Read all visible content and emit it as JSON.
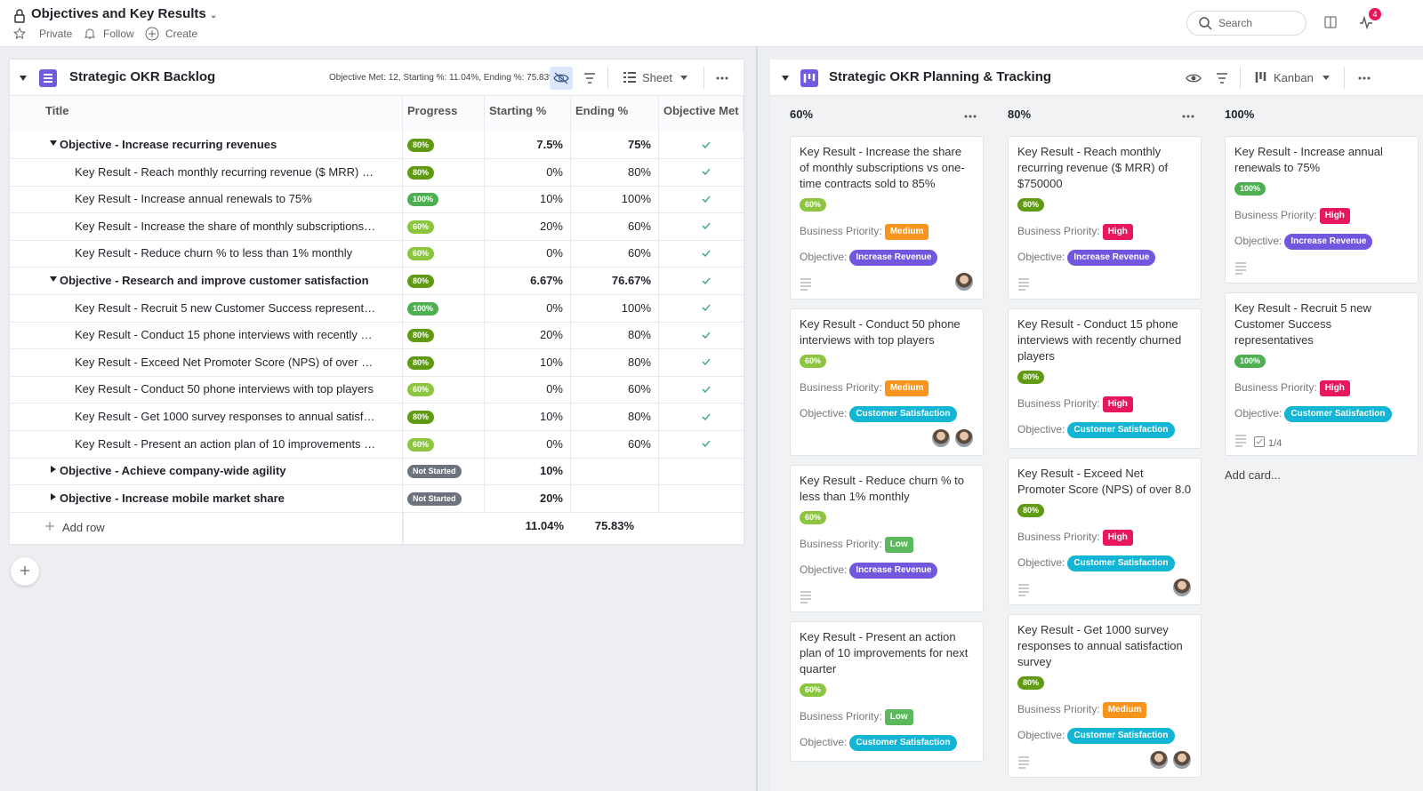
{
  "header": {
    "title": "Objectives and Key Results",
    "private": "Private",
    "follow": "Follow",
    "create": "Create",
    "search": "Search",
    "notifications": "4"
  },
  "colors": {
    "progress": {
      "60%": "#8cc63f",
      "80%": "#5f9a12",
      "100%": "#4cb050",
      "Not Started": "#6c737d"
    },
    "priority": {
      "Medium": "#f7941d",
      "High": "#e8175d",
      "Low": "#5cb85c"
    },
    "objective": {
      "Increase Revenue": "#7356e0",
      "Customer Satisfaction": "#12b5d4"
    }
  },
  "sheet": {
    "title": "Strategic OKR Backlog",
    "summary": "Objective Met: 12, Starting %: 11.04%, Ending %: 75.83%",
    "view": "Sheet",
    "columns": [
      "Title",
      "Progress",
      "Starting %",
      "Ending %",
      "Objective Met"
    ],
    "objectives": [
      {
        "title": "Objective - Increase recurring revenues",
        "progress": "80%",
        "start": "7.5%",
        "end": "75%",
        "met": true,
        "expanded": true,
        "key_results": [
          {
            "title": "Key Result - Reach monthly recurring revenue ($ MRR) of $750000",
            "progress": "80%",
            "start": "0%",
            "end": "80%",
            "met": true
          },
          {
            "title": "Key Result - Increase annual renewals to 75%",
            "progress": "100%",
            "start": "10%",
            "end": "100%",
            "met": true
          },
          {
            "title": "Key Result - Increase the share of monthly subscriptions vs one-time contracts sold to 85%",
            "progress": "60%",
            "start": "20%",
            "end": "60%",
            "met": true
          },
          {
            "title": "Key Result - Reduce churn % to less than 1% monthly",
            "progress": "60%",
            "start": "0%",
            "end": "60%",
            "met": true
          }
        ]
      },
      {
        "title": "Objective - Research and improve customer satisfaction",
        "progress": "80%",
        "start": "6.67%",
        "end": "76.67%",
        "met": true,
        "expanded": true,
        "key_results": [
          {
            "title": "Key Result - Recruit 5 new Customer Success representatives",
            "progress": "100%",
            "start": "0%",
            "end": "100%",
            "met": true
          },
          {
            "title": "Key Result - Conduct 15 phone interviews with recently churned players",
            "progress": "80%",
            "start": "20%",
            "end": "80%",
            "met": true
          },
          {
            "title": "Key Result - Exceed Net Promoter Score (NPS) of over 8.0",
            "progress": "80%",
            "start": "10%",
            "end": "80%",
            "met": true
          },
          {
            "title": "Key Result - Conduct 50 phone interviews with top players",
            "progress": "60%",
            "start": "0%",
            "end": "60%",
            "met": true
          },
          {
            "title": "Key Result - Get 1000 survey responses to annual satisfaction survey",
            "progress": "80%",
            "start": "10%",
            "end": "80%",
            "met": true
          },
          {
            "title": "Key Result - Present an action plan of 10 improvements for next quarter",
            "progress": "60%",
            "start": "0%",
            "end": "60%",
            "met": true
          }
        ]
      },
      {
        "title": "Objective - Achieve company-wide agility",
        "progress": "Not Started",
        "start": "10%",
        "end": null,
        "met": false,
        "expanded": false,
        "key_results": []
      },
      {
        "title": "Objective - Increase mobile market share",
        "progress": "Not Started",
        "start": "20%",
        "end": null,
        "met": false,
        "expanded": false,
        "key_results": []
      }
    ],
    "add_row": "Add row",
    "totals": {
      "start": "11.04%",
      "end": "75.83%"
    }
  },
  "kanban": {
    "title": "Strategic OKR Planning & Tracking",
    "view": "Kanban",
    "priority_label": "Business Priority:",
    "objective_label": "Objective:",
    "add_card": "Add card...",
    "columns": [
      {
        "title": "60%",
        "cards": [
          {
            "title": "Key Result - Increase the share of monthly subscriptions vs one-time contracts sold to 85%",
            "progress": "60%",
            "priority": "Medium",
            "objective": "Increase Revenue",
            "notes": true,
            "avatars": 1
          },
          {
            "title": "Key Result - Conduct 50 phone interviews with top players",
            "progress": "60%",
            "priority": "Medium",
            "objective": "Customer Satisfaction",
            "notes": false,
            "avatars": 2
          },
          {
            "title": "Key Result - Reduce churn % to less than 1% monthly",
            "progress": "60%",
            "priority": "Low",
            "objective": "Increase Revenue",
            "notes": true,
            "avatars": 0
          },
          {
            "title": "Key Result - Present an action plan of 10 improvements for next quarter",
            "progress": "60%",
            "priority": "Low",
            "objective": "Customer Satisfaction",
            "notes": false,
            "avatars": 0
          }
        ]
      },
      {
        "title": "80%",
        "cards": [
          {
            "title": "Key Result - Reach monthly recurring revenue ($ MRR) of $750000",
            "progress": "80%",
            "priority": "High",
            "objective": "Increase Revenue",
            "notes": true,
            "avatars": 0
          },
          {
            "title": "Key Result - Conduct 15 phone interviews with recently churned players",
            "progress": "80%",
            "priority": "High",
            "objective": "Customer Satisfaction",
            "notes": false,
            "avatars": 0
          },
          {
            "title": "Key Result - Exceed Net Promoter Score (NPS) of over 8.0",
            "progress": "80%",
            "priority": "High",
            "objective": "Customer Satisfaction",
            "notes": true,
            "avatars": 1
          },
          {
            "title": "Key Result - Get 1000 survey responses to annual satisfaction survey",
            "progress": "80%",
            "priority": "Medium",
            "objective": "Customer Satisfaction",
            "notes": true,
            "avatars": 2
          }
        ]
      },
      {
        "title": "100%",
        "cards": [
          {
            "title": "Key Result - Increase annual renewals to 75%",
            "progress": "100%",
            "priority": "High",
            "objective": "Increase Revenue",
            "notes": true,
            "avatars": 0
          },
          {
            "title": "Key Result - Recruit 5 new Customer Success representatives",
            "progress": "100%",
            "priority": "High",
            "objective": "Customer Satisfaction",
            "notes": true,
            "avatars": 0,
            "checklist": "1/4"
          }
        ]
      }
    ]
  }
}
